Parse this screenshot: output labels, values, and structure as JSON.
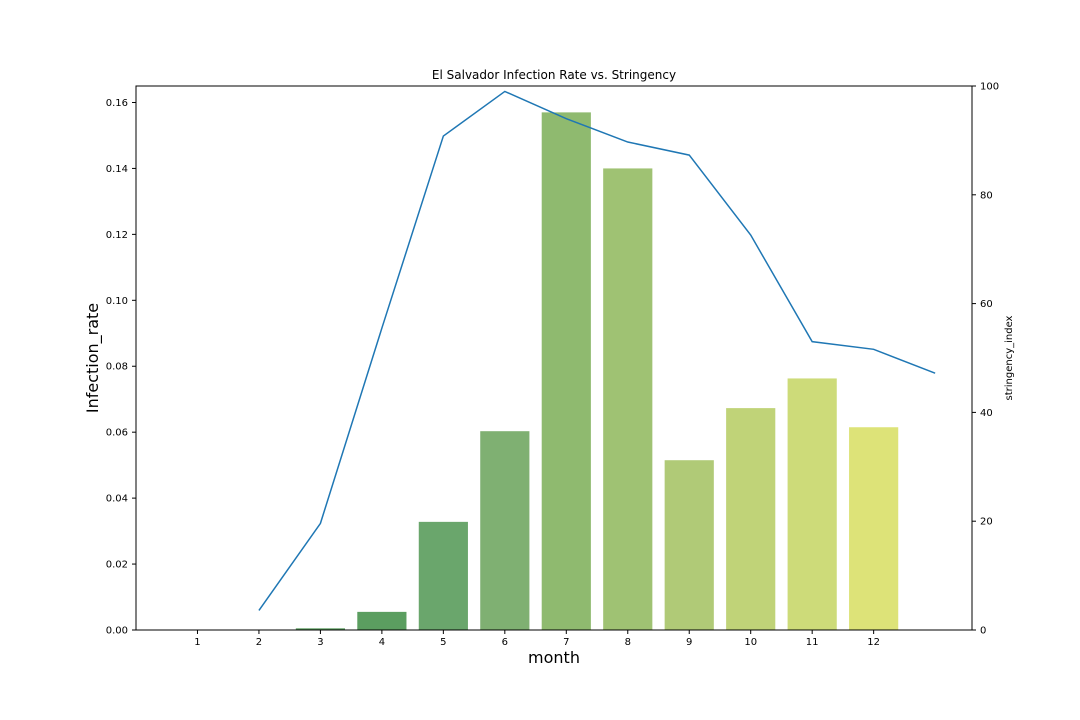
{
  "chart_data": {
    "type": "bar",
    "title": "El Salvador Infection Rate vs. Stringency",
    "xlabel": "month",
    "ylabel": "Infection_rate",
    "y2label": "stringency_index",
    "categories": [
      "1",
      "2",
      "3",
      "4",
      "5",
      "6",
      "7",
      "8",
      "9",
      "10",
      "11",
      "12"
    ],
    "bar_series": {
      "name": "Infection_rate",
      "values": [
        0.0,
        0.0,
        0.0005,
        0.0055,
        0.0328,
        0.0603,
        0.157,
        0.14,
        0.0515,
        0.0673,
        0.0763,
        0.0615
      ],
      "colors": [
        "#4a8a4f",
        "#4f8f54",
        "#559759",
        "#5b9e60",
        "#6aa66c",
        "#7fb072",
        "#8fba6f",
        "#9fc273",
        "#b0ca77",
        "#c0d378",
        "#cddb79",
        "#dde378"
      ]
    },
    "line_series": {
      "name": "stringency_index",
      "x": [
        2,
        3,
        4,
        5,
        6,
        7,
        8,
        9,
        10,
        11,
        12,
        13
      ],
      "values": [
        3.6,
        19.6,
        55.5,
        90.8,
        99.0,
        94.0,
        89.7,
        87.3,
        72.6,
        53.0,
        51.6,
        47.2
      ],
      "color": "#1f77b4"
    },
    "ylim": [
      0,
      0.165
    ],
    "y2lim": [
      0,
      100
    ],
    "xlim": [
      0,
      13.6
    ],
    "yticks": [
      "0.00",
      "0.02",
      "0.04",
      "0.06",
      "0.08",
      "0.10",
      "0.12",
      "0.14",
      "0.16"
    ],
    "y2ticks": [
      "0",
      "20",
      "40",
      "60",
      "80",
      "100"
    ],
    "grid": false
  }
}
